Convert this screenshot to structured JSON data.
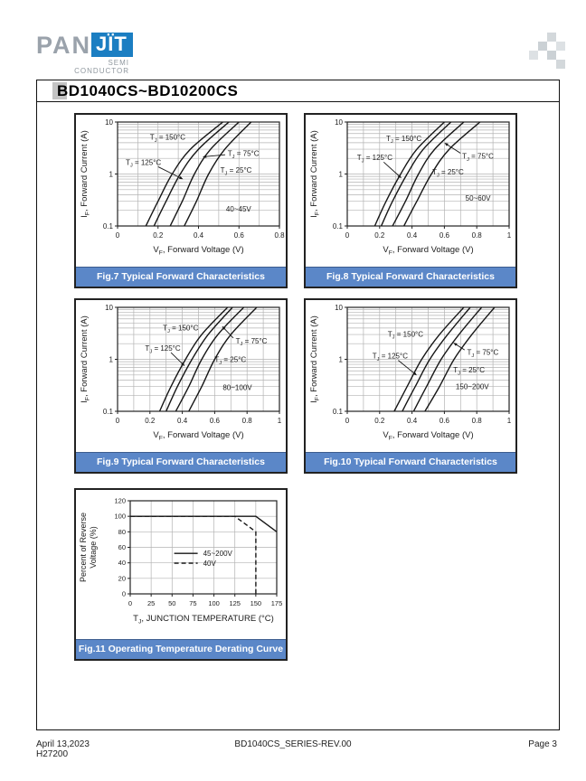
{
  "page": {
    "header": {
      "title": "BD1040CS~BD10200CS"
    },
    "brand": {
      "pan": "PAN",
      "jit": "JÏT",
      "semi": "SEMI",
      "conductor": "CONDUCTOR"
    },
    "footer": {
      "date": "April 13,2023",
      "code": "H27200",
      "center": "BD1040CS_SERIES-REV.00",
      "page": "Page 3"
    }
  },
  "colors": {
    "caption_bg": "#5b87c8",
    "caption_text": "#ffffff",
    "brand_blue": "#1b7ec2",
    "brand_gray": "#9aa2ab",
    "grid": "#b3b3b3",
    "curve": "#161616",
    "frame": "#111111"
  },
  "chart_data": [
    {
      "id": "fig7",
      "type": "line",
      "yscale": "log",
      "caption": "Fig.7 Typical Forward Characteristics",
      "xlabel": "V_F, Forward Voltage (V)",
      "ylabel": "I_F, Forward Current (A)",
      "xlim": [
        0,
        0.8
      ],
      "ylim": [
        0.1,
        10
      ],
      "grid": true,
      "grid_minor_x_step": 0.1,
      "xticks": [
        0,
        0.2,
        0.4,
        0.6,
        0.8
      ],
      "xtick_labels": [
        "0",
        "0.2",
        "0.4",
        "0.6",
        "0.8"
      ],
      "yticks": [
        0.1,
        1,
        10
      ],
      "ytick_labels": [
        "0.1",
        "1",
        "10"
      ],
      "voltage_note": {
        "text": "40~45V",
        "fx": 0.67,
        "fy": 0.835
      },
      "series": [
        {
          "name": "T_J = 150°C",
          "x": [
            0.14,
            0.2,
            0.27,
            0.36,
            0.52
          ],
          "y": [
            0.1,
            0.3,
            1,
            3,
            10
          ]
        },
        {
          "name": "T_J = 125°C",
          "x": [
            0.18,
            0.24,
            0.31,
            0.4,
            0.55
          ],
          "y": [
            0.1,
            0.3,
            1,
            3,
            10
          ]
        },
        {
          "name": "T_J = 75°C",
          "x": [
            0.26,
            0.32,
            0.38,
            0.46,
            0.6
          ],
          "y": [
            0.1,
            0.3,
            1,
            3,
            10
          ]
        },
        {
          "name": "T_J = 25°C",
          "x": [
            0.33,
            0.39,
            0.45,
            0.53,
            0.66
          ],
          "y": [
            0.1,
            0.3,
            1,
            3,
            10
          ]
        }
      ],
      "labels": [
        {
          "text": "T_J = 150°C",
          "fx": 0.2,
          "fy": 0.145
        },
        {
          "text": "T_J = 125°C",
          "fx": 0.05,
          "fy": 0.385,
          "arrow": {
            "from": [
              0.25,
              0.43
            ],
            "to": [
              0.405,
              0.55
            ]
          }
        },
        {
          "text": "T_J = 75°C",
          "fx": 0.68,
          "fy": 0.3,
          "arrow": {
            "from": [
              0.665,
              0.315
            ],
            "to": [
              0.525,
              0.335
            ]
          }
        },
        {
          "text": "T_J = 25°C",
          "fx": 0.635,
          "fy": 0.46
        }
      ]
    },
    {
      "id": "fig8",
      "type": "line",
      "yscale": "log",
      "caption": "Fig.8 Typical Forward Characteristics",
      "xlabel": "V_F, Forward Voltage (V)",
      "ylabel": "I_F, Forward Current (A)",
      "xlim": [
        0,
        1
      ],
      "ylim": [
        0.1,
        10
      ],
      "grid": true,
      "grid_minor_x_step": 0.1,
      "xticks": [
        0,
        0.2,
        0.4,
        0.6,
        0.8,
        1
      ],
      "xtick_labels": [
        "0",
        "0.2",
        "0.4",
        "0.6",
        "0.8",
        "1"
      ],
      "yticks": [
        0.1,
        1,
        10
      ],
      "ytick_labels": [
        "0.1",
        "1",
        "10"
      ],
      "voltage_note": {
        "text": "50~60V",
        "fx": 0.73,
        "fy": 0.73
      },
      "series": [
        {
          "name": "T_J = 150°C",
          "x": [
            0.17,
            0.24,
            0.33,
            0.43,
            0.6
          ],
          "y": [
            0.1,
            0.3,
            1,
            3,
            10
          ]
        },
        {
          "name": "T_J = 125°C",
          "x": [
            0.21,
            0.28,
            0.37,
            0.47,
            0.64
          ],
          "y": [
            0.1,
            0.3,
            1,
            3,
            10
          ]
        },
        {
          "name": "T_J = 75°C",
          "x": [
            0.28,
            0.36,
            0.44,
            0.54,
            0.72
          ],
          "y": [
            0.1,
            0.3,
            1,
            3,
            10
          ]
        },
        {
          "name": "T_J = 25°C",
          "x": [
            0.35,
            0.43,
            0.52,
            0.63,
            0.82
          ],
          "y": [
            0.1,
            0.3,
            1,
            3,
            10
          ]
        }
      ],
      "labels": [
        {
          "text": "T_J = 150°C",
          "fx": 0.24,
          "fy": 0.155
        },
        {
          "text": "T_J = 125°C",
          "fx": 0.06,
          "fy": 0.34,
          "arrow": {
            "from": [
              0.225,
              0.385
            ],
            "to": [
              0.335,
              0.54
            ]
          }
        },
        {
          "text": "T_J = 75°C",
          "fx": 0.71,
          "fy": 0.325,
          "arrow": {
            "from": [
              0.7,
              0.3
            ],
            "to": [
              0.6,
              0.2
            ]
          }
        },
        {
          "text": "T_J = 25°C",
          "fx": 0.525,
          "fy": 0.48
        }
      ]
    },
    {
      "id": "fig9",
      "type": "line",
      "yscale": "log",
      "caption": "Fig.9 Typical Forward Characteristics",
      "xlabel": "V_F, Forward Voltage (V)",
      "ylabel": "I_F, Forward Current (A)",
      "xlim": [
        0,
        1
      ],
      "ylim": [
        0.1,
        10
      ],
      "grid": true,
      "grid_minor_x_step": 0.1,
      "xticks": [
        0,
        0.2,
        0.4,
        0.6,
        0.8,
        1
      ],
      "xtick_labels": [
        "0",
        "0.2",
        "0.4",
        "0.6",
        "0.8",
        "1"
      ],
      "yticks": [
        0.1,
        1,
        10
      ],
      "ytick_labels": [
        "0.1",
        "1",
        "10"
      ],
      "voltage_note": {
        "text": "80~100V",
        "fx": 0.65,
        "fy": 0.77
      },
      "series": [
        {
          "name": "T_J = 150°C",
          "x": [
            0.26,
            0.33,
            0.42,
            0.52,
            0.68
          ],
          "y": [
            0.1,
            0.3,
            1,
            3,
            10
          ]
        },
        {
          "name": "T_J = 125°C",
          "x": [
            0.3,
            0.37,
            0.46,
            0.56,
            0.71
          ],
          "y": [
            0.1,
            0.3,
            1,
            3,
            10
          ]
        },
        {
          "name": "T_J = 75°C",
          "x": [
            0.36,
            0.44,
            0.52,
            0.62,
            0.78
          ],
          "y": [
            0.1,
            0.3,
            1,
            3,
            10
          ]
        },
        {
          "name": "T_J = 25°C",
          "x": [
            0.44,
            0.52,
            0.6,
            0.7,
            0.86
          ],
          "y": [
            0.1,
            0.3,
            1,
            3,
            10
          ]
        }
      ],
      "labels": [
        {
          "text": "T_J = 150°C",
          "fx": 0.28,
          "fy": 0.195
        },
        {
          "text": "T_J = 125°C",
          "fx": 0.17,
          "fy": 0.39,
          "arrow": {
            "from": [
              0.33,
              0.435
            ],
            "to": [
              0.415,
              0.565
            ]
          }
        },
        {
          "text": "T_J = 75°C",
          "fx": 0.73,
          "fy": 0.32,
          "arrow": {
            "from": [
              0.715,
              0.295
            ],
            "to": [
              0.645,
              0.18
            ]
          }
        },
        {
          "text": "T_J = 25°C",
          "fx": 0.6,
          "fy": 0.5
        }
      ]
    },
    {
      "id": "fig10",
      "type": "line",
      "yscale": "log",
      "caption": "Fig.10 Typical Forward Characteristics",
      "xlabel": "V_F, Forward Voltage (V)",
      "ylabel": "I_F, Forward Current (A)",
      "xlim": [
        0,
        1
      ],
      "ylim": [
        0.1,
        10
      ],
      "grid": true,
      "grid_minor_x_step": 0.1,
      "xticks": [
        0,
        0.2,
        0.4,
        0.6,
        0.8,
        1
      ],
      "xtick_labels": [
        "0",
        "0.2",
        "0.4",
        "0.6",
        "0.8",
        "1"
      ],
      "yticks": [
        0.1,
        1,
        10
      ],
      "ytick_labels": [
        "0.1",
        "1",
        "10"
      ],
      "voltage_note": {
        "text": "150~200V",
        "fx": 0.67,
        "fy": 0.76
      },
      "series": [
        {
          "name": "T_J = 150°C",
          "x": [
            0.29,
            0.37,
            0.46,
            0.57,
            0.72
          ],
          "y": [
            0.1,
            0.3,
            1,
            3,
            10
          ]
        },
        {
          "name": "T_J = 125°C",
          "x": [
            0.34,
            0.42,
            0.51,
            0.62,
            0.76
          ],
          "y": [
            0.1,
            0.3,
            1,
            3,
            10
          ]
        },
        {
          "name": "T_J = 75°C",
          "x": [
            0.41,
            0.49,
            0.58,
            0.69,
            0.83
          ],
          "y": [
            0.1,
            0.3,
            1,
            3,
            10
          ]
        },
        {
          "name": "T_J = 25°C",
          "x": [
            0.48,
            0.57,
            0.66,
            0.77,
            0.91
          ],
          "y": [
            0.1,
            0.3,
            1,
            3,
            10
          ]
        }
      ],
      "labels": [
        {
          "text": "T_J = 150°C",
          "fx": 0.25,
          "fy": 0.255
        },
        {
          "text": "T_J = 125°C",
          "fx": 0.155,
          "fy": 0.465,
          "arrow": {
            "from": [
              0.315,
              0.51
            ],
            "to": [
              0.43,
              0.655
            ]
          }
        },
        {
          "text": "T_J = 75°C",
          "fx": 0.74,
          "fy": 0.43,
          "arrow": {
            "from": [
              0.725,
              0.41
            ],
            "to": [
              0.655,
              0.34
            ]
          }
        },
        {
          "text": "T_J = 25°C",
          "fx": 0.655,
          "fy": 0.6
        }
      ]
    },
    {
      "id": "fig11",
      "type": "line",
      "yscale": "linear",
      "caption": "Fig.11 Operating Temperature Derating Curve",
      "xlabel": "T_J, JUNCTION TEMPERATURE (°C)",
      "ylabel_lines": [
        "Percent of Reverse",
        "Voltage (%)"
      ],
      "xlim": [
        0,
        175
      ],
      "ylim": [
        0,
        120
      ],
      "grid": true,
      "xticks": [
        0,
        25,
        50,
        75,
        100,
        125,
        150,
        175
      ],
      "xtick_labels": [
        "0",
        "25",
        "50",
        "75",
        "100",
        "125",
        "150",
        "175"
      ],
      "yticks": [
        0,
        20,
        40,
        60,
        80,
        100,
        120
      ],
      "ytick_labels": [
        "0",
        "20",
        "40",
        "60",
        "80",
        "100",
        "120"
      ],
      "series": [
        {
          "name": "45~200V",
          "style": "solid",
          "x": [
            0,
            150,
            175
          ],
          "y": [
            100,
            100,
            80
          ]
        },
        {
          "name": "40V",
          "style": "dashed",
          "x": [
            0,
            125,
            150,
            150
          ],
          "y": [
            100,
            100,
            80,
            0
          ]
        }
      ],
      "legend": {
        "fx": 0.3,
        "fy": 0.565,
        "row_gap": 0.105,
        "sample_len": 26
      }
    }
  ]
}
